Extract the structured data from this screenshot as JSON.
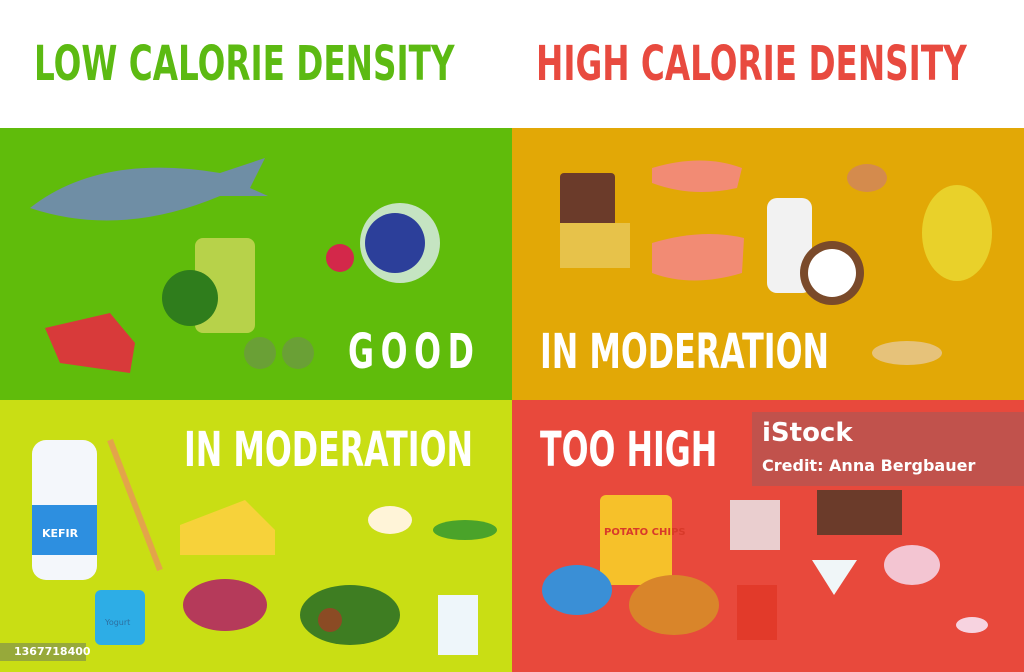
{
  "headers": {
    "low": "LOW CALORIE DENSITY",
    "high": "HIGH CALORIE DENSITY"
  },
  "panels": {
    "top_left": {
      "label": "GOOD",
      "color": "#60bc0b"
    },
    "top_right": {
      "label": "IN MODERATION",
      "color": "#e2a806"
    },
    "bottom_left": {
      "label": "IN MODERATION",
      "color": "#c9de14",
      "items": {
        "kefir": "KEFIR",
        "yogurt": "Yogurt"
      }
    },
    "bottom_right": {
      "label": "TOO HIGH",
      "color": "#e8493c",
      "items": {
        "chips": "POTATO CHIPS"
      }
    }
  },
  "watermark": {
    "logo": "iStock",
    "credit": "Credit: Anna Bergbauer"
  },
  "image_id": "1367718400"
}
